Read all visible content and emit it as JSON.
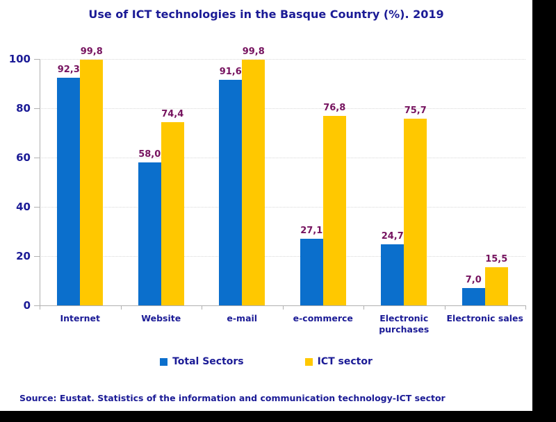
{
  "title": "Use of ICT technologies in the Basque Country (%). 2019",
  "source_note": "Source: Eustat. Statistics of the information and communication technology-ICT sector",
  "legend": [
    {
      "label": "Total Sectors",
      "color": "#0B6FCC"
    },
    {
      "label": "ICT sector",
      "color": "#FFC800"
    }
  ],
  "colors": {
    "title_text": "#1B1B96",
    "axis_text": "#1B1B96",
    "value_label_text": "#76135F",
    "grid_line": "#D8D8D8",
    "axis_line": "#B0B0B0",
    "bar_total_sectors": "#0B6FCC",
    "bar_ict_sector": "#FFC800",
    "frame_background": "#000000",
    "chart_background": "#FFFFFF"
  },
  "chart_data": {
    "type": "bar",
    "title": "Use of ICT technologies in the Basque Country (%). 2019",
    "categories": [
      "Internet",
      "Website",
      "e-mail",
      "e-commerce",
      "Electronic purchases",
      "Electronic sales"
    ],
    "series": [
      {
        "name": "Total Sectors",
        "color": "#0B6FCC",
        "values": [
          92.3,
          58.0,
          91.6,
          27.1,
          24.7,
          7.0
        ],
        "value_labels": [
          "92,3",
          "58,0",
          "91,6",
          "27,1",
          "24,7",
          "7,0"
        ]
      },
      {
        "name": "ICT sector",
        "color": "#FFC800",
        "values": [
          99.8,
          74.4,
          99.8,
          76.8,
          75.7,
          15.5
        ],
        "value_labels": [
          "99,8",
          "74,4",
          "99,8",
          "76,8",
          "75,7",
          "15,5"
        ]
      }
    ],
    "ylim": [
      0,
      100
    ],
    "yticks": [
      0,
      20,
      40,
      60,
      80,
      100
    ],
    "grid": true,
    "legend_position": "bottom",
    "xlabel": "",
    "ylabel": ""
  }
}
